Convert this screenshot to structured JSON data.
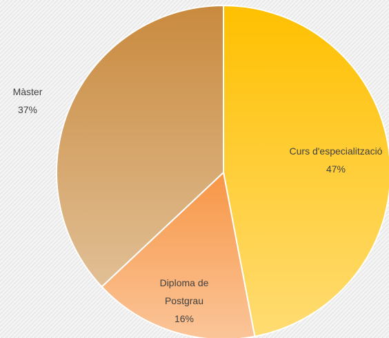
{
  "chart_data": {
    "type": "pie",
    "categories": [
      "Curs d'especialització",
      "Diploma de Postgrau",
      "Màster"
    ],
    "values": [
      47,
      16,
      37
    ],
    "value_labels": [
      "47%",
      "16%",
      "37%"
    ],
    "colors": [
      "#ffc000",
      "#f79646",
      "#c98a3e"
    ]
  }
}
